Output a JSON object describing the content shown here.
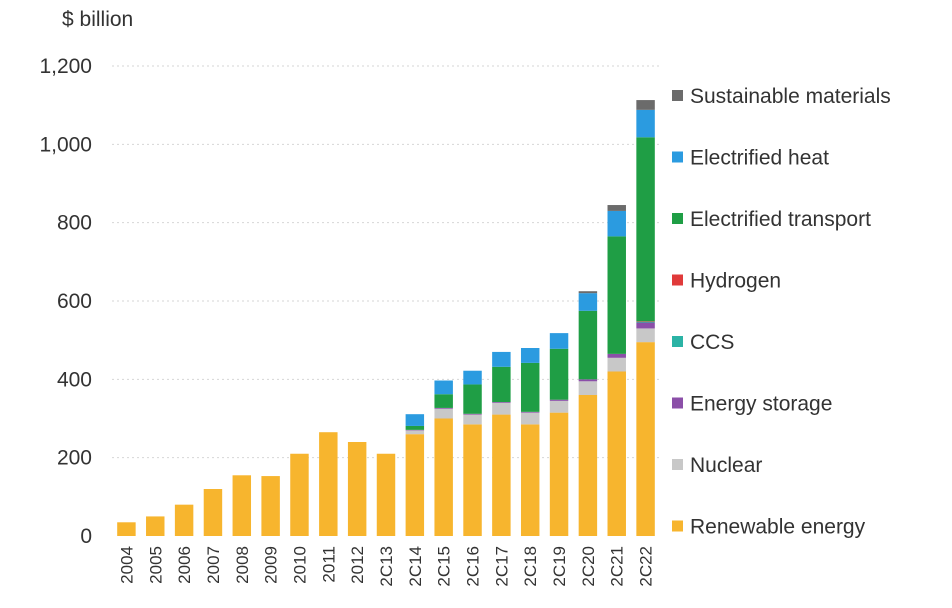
{
  "chart_data": {
    "type": "bar",
    "stacked": true,
    "unit_label": "$ billion",
    "ylim": [
      0,
      1200
    ],
    "yticks": [
      0,
      200,
      400,
      600,
      800,
      1000,
      1200
    ],
    "ytick_labels": [
      "0",
      "200",
      "400",
      "600",
      "800",
      "1,000",
      "1,200"
    ],
    "grid": true,
    "legend_position": "right",
    "categories": [
      "2004",
      "2005",
      "2006",
      "2007",
      "2008",
      "2009",
      "2010",
      "2011",
      "2012",
      "2C13",
      "2C14",
      "2C15",
      "2C16",
      "2C17",
      "2C18",
      "2C19",
      "2C20",
      "2C21",
      "2C22"
    ],
    "series": [
      {
        "name": "Renewable energy",
        "color": "#f7b52e",
        "values": [
          35,
          50,
          80,
          120,
          155,
          153,
          210,
          265,
          240,
          210,
          260,
          300,
          285,
          310,
          285,
          315,
          360,
          420,
          495
        ]
      },
      {
        "name": "Nuclear",
        "color": "#c8c8c8",
        "values": [
          0,
          0,
          0,
          0,
          0,
          0,
          0,
          0,
          0,
          0,
          10,
          25,
          25,
          30,
          30,
          30,
          35,
          35,
          35
        ]
      },
      {
        "name": "Energy storage",
        "color": "#8b4fa8",
        "values": [
          0,
          0,
          0,
          0,
          0,
          0,
          0,
          0,
          0,
          0,
          1,
          2,
          2,
          2,
          2,
          3,
          5,
          10,
          15
        ]
      },
      {
        "name": "CCS",
        "color": "#2bb3a5",
        "values": [
          0,
          0,
          0,
          0,
          0,
          0,
          0,
          0,
          0,
          0,
          0,
          0,
          0,
          0,
          0,
          0,
          0,
          0,
          2
        ]
      },
      {
        "name": "Hydrogen",
        "color": "#e03a3a",
        "values": [
          0,
          0,
          0,
          0,
          0,
          0,
          0,
          0,
          0,
          0,
          0,
          0,
          0,
          0,
          0,
          0,
          0,
          0,
          1
        ]
      },
      {
        "name": "Electrified transport",
        "color": "#1f9e45",
        "values": [
          0,
          0,
          0,
          0,
          0,
          0,
          0,
          0,
          0,
          0,
          10,
          35,
          75,
          90,
          125,
          130,
          175,
          300,
          470
        ]
      },
      {
        "name": "Electrified heat",
        "color": "#2b9be0",
        "values": [
          0,
          0,
          0,
          0,
          0,
          0,
          0,
          0,
          0,
          0,
          30,
          35,
          35,
          38,
          38,
          40,
          45,
          65,
          70
        ]
      },
      {
        "name": "Sustainable materials",
        "color": "#6b6b6b",
        "values": [
          0,
          0,
          0,
          0,
          0,
          0,
          0,
          0,
          0,
          0,
          0,
          0,
          0,
          0,
          0,
          0,
          5,
          15,
          25
        ]
      }
    ]
  }
}
